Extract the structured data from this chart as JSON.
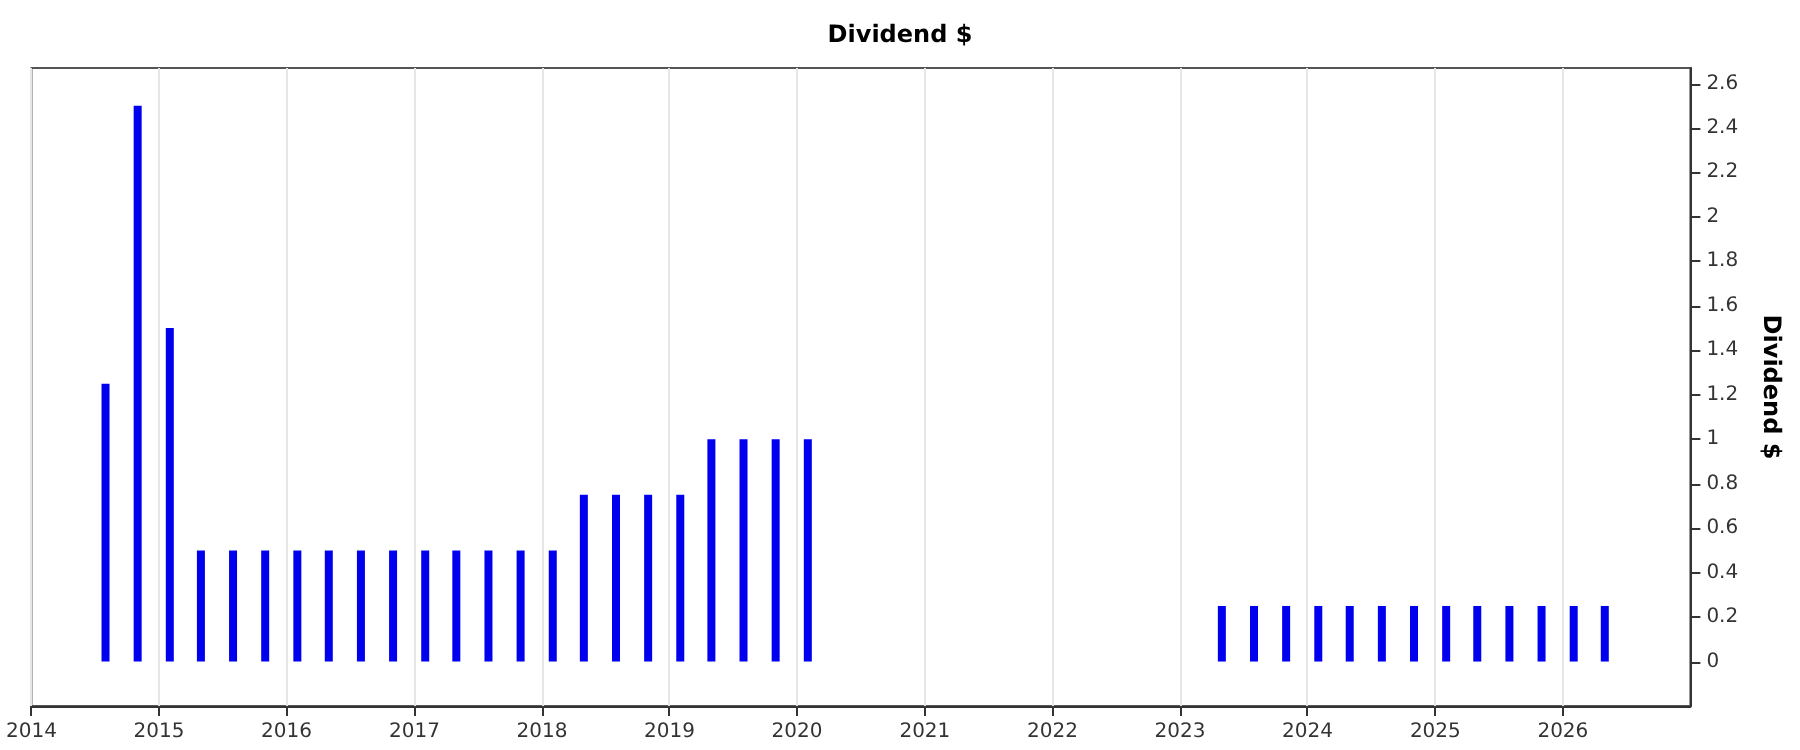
{
  "chart_data": {
    "type": "bar",
    "title": "Dividend $",
    "ylabel": "Dividend $",
    "x": [
      "2014-08",
      "2014-11",
      "2015-02",
      "2015-05",
      "2015-08",
      "2015-11",
      "2016-02",
      "2016-05",
      "2016-08",
      "2016-11",
      "2017-02",
      "2017-05",
      "2017-08",
      "2017-11",
      "2018-02",
      "2018-05",
      "2018-08",
      "2018-11",
      "2019-02",
      "2019-05",
      "2019-08",
      "2019-11",
      "2020-02",
      "2023-05",
      "2023-08",
      "2023-11",
      "2024-02",
      "2024-05",
      "2024-08",
      "2024-11",
      "2025-02",
      "2025-05",
      "2025-08",
      "2025-11",
      "2026-02",
      "2026-05"
    ],
    "series": [
      {
        "color": "#0000ee",
        "values": [
          1.25,
          2.5,
          1.5,
          0.5,
          0.5,
          0.5,
          0.5,
          0.5,
          0.5,
          0.5,
          0.5,
          0.5,
          0.5,
          0.5,
          0.5,
          0.75,
          0.75,
          0.75,
          0.75,
          1,
          1,
          1,
          1,
          0.25,
          0.25,
          0.25,
          0.25,
          0.25,
          0.25,
          0.25,
          0.25,
          0.25,
          0.25,
          0.25,
          0.25,
          0.25
        ]
      }
    ],
    "xlim": [
      "2014",
      "2027"
    ],
    "xticks": [
      "2014",
      "2015",
      "2016",
      "2017",
      "2018",
      "2019",
      "2020",
      "2021",
      "2022",
      "2023",
      "2024",
      "2025",
      "2026"
    ],
    "ylim": [
      -0.2,
      2.67
    ],
    "yticks": [
      0,
      0.2,
      0.4,
      0.6,
      0.8,
      1,
      1.2,
      1.4,
      1.6,
      1.8,
      2,
      2.2,
      2.4,
      2.6
    ],
    "grid": "x"
  }
}
